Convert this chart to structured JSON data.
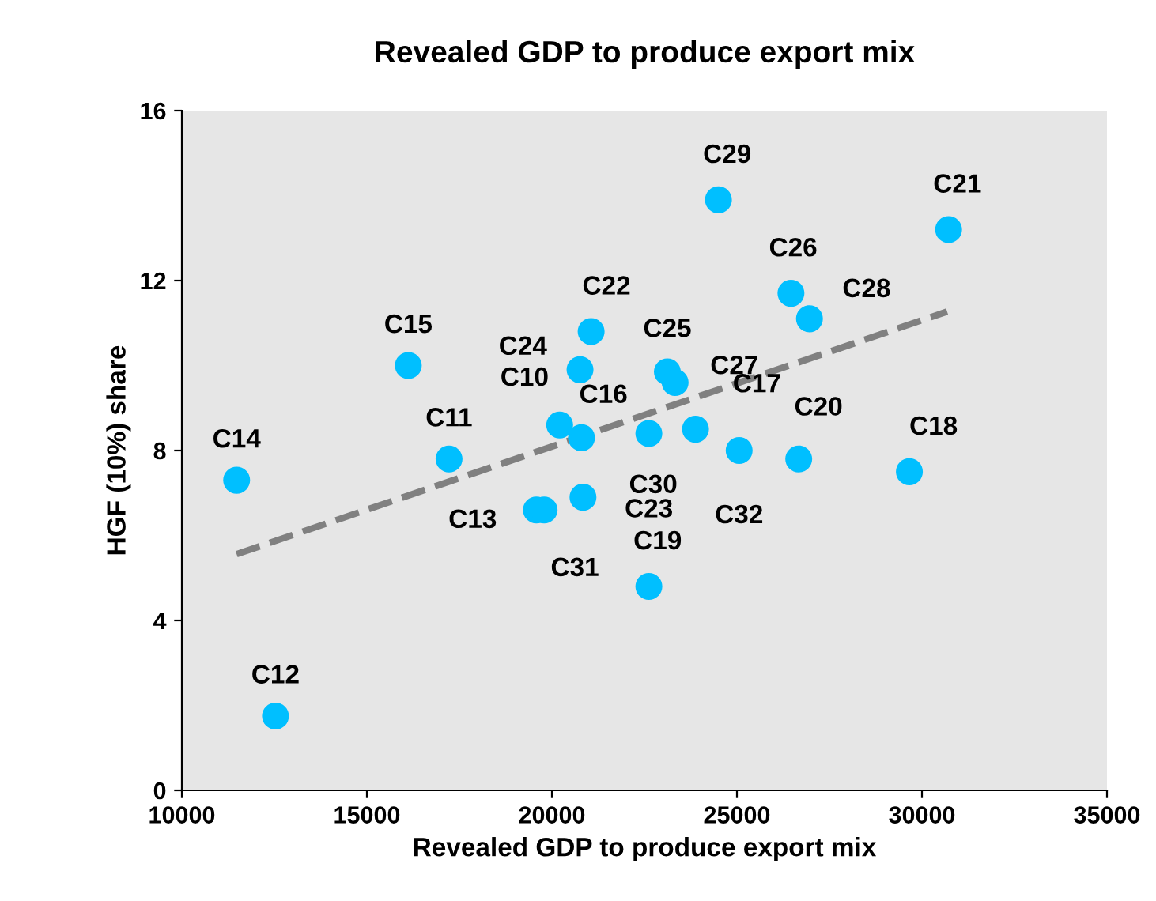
{
  "chart_data": {
    "type": "scatter",
    "title": "Revealed GDP to produce export mix",
    "xlabel": "Revealed GDP to produce export mix",
    "ylabel": "HGF (10%) share",
    "xlim": [
      10000,
      35000
    ],
    "xticks": [
      10000,
      15000,
      20000,
      25000,
      30000,
      35000
    ],
    "ylim": [
      0,
      16
    ],
    "yticks": [
      0,
      4,
      8,
      12,
      16
    ],
    "grid": false,
    "legend": false,
    "marker": "circle",
    "series": [
      {
        "color": "#00bfff",
        "x": [
          12530,
          11480,
          17220,
          16120,
          19580,
          19790,
          20840,
          20210,
          20800,
          20760,
          21060,
          22620,
          22620,
          23120,
          23330,
          23880,
          25060,
          24500,
          26460,
          26960,
          26670,
          29660,
          30720
        ],
        "values": [
          1.75,
          7.3,
          7.8,
          10.0,
          6.6,
          6.6,
          6.9,
          8.6,
          8.3,
          9.9,
          10.8,
          8.4,
          4.8,
          9.85,
          9.6,
          8.5,
          8.0,
          13.9,
          11.7,
          11.1,
          7.8,
          7.5,
          13.2
        ]
      },
      {
        "type": "line",
        "color": "#808080",
        "line_style": "dashed",
        "marker": "none",
        "x": [
          11480,
          30680
        ],
        "values": [
          5.56,
          11.27
        ]
      }
    ],
    "annotations": [
      {
        "text": "C12",
        "x": 12530,
        "y": 1.75
      },
      {
        "text": "C14",
        "x": 11480,
        "y": 7.3
      },
      {
        "text": "C11",
        "x": 17220,
        "y": 7.8
      },
      {
        "text": "C15",
        "x": 16120,
        "y": 10.0
      },
      {
        "text": "C13",
        "x": 19580,
        "y": 6.6
      },
      {
        "text": "C31",
        "x": 19790,
        "y": 6.6
      },
      {
        "text": "C23",
        "x": 20840,
        "y": 6.9
      },
      {
        "text": "C10",
        "x": 20210,
        "y": 8.6
      },
      {
        "text": "C16",
        "x": 20800,
        "y": 8.3
      },
      {
        "text": "C24",
        "x": 20760,
        "y": 9.9
      },
      {
        "text": "C22",
        "x": 21060,
        "y": 10.8
      },
      {
        "text": "C30",
        "x": 22620,
        "y": 8.4
      },
      {
        "text": "C19",
        "x": 22620,
        "y": 4.8
      },
      {
        "text": "C25",
        "x": 23120,
        "y": 9.85
      },
      {
        "text": "C27",
        "x": 23330,
        "y": 9.6
      },
      {
        "text": "C17",
        "x": 23880,
        "y": 8.5
      },
      {
        "text": "C32",
        "x": 25060,
        "y": 8.0
      },
      {
        "text": "C29",
        "x": 24500,
        "y": 13.9
      },
      {
        "text": "C26",
        "x": 26460,
        "y": 11.7
      },
      {
        "text": "C28",
        "x": 26960,
        "y": 11.1
      },
      {
        "text": "C20",
        "x": 26670,
        "y": 7.8
      },
      {
        "text": "C18",
        "x": 29660,
        "y": 7.5
      },
      {
        "text": "C21",
        "x": 30720,
        "y": 13.2
      }
    ]
  }
}
